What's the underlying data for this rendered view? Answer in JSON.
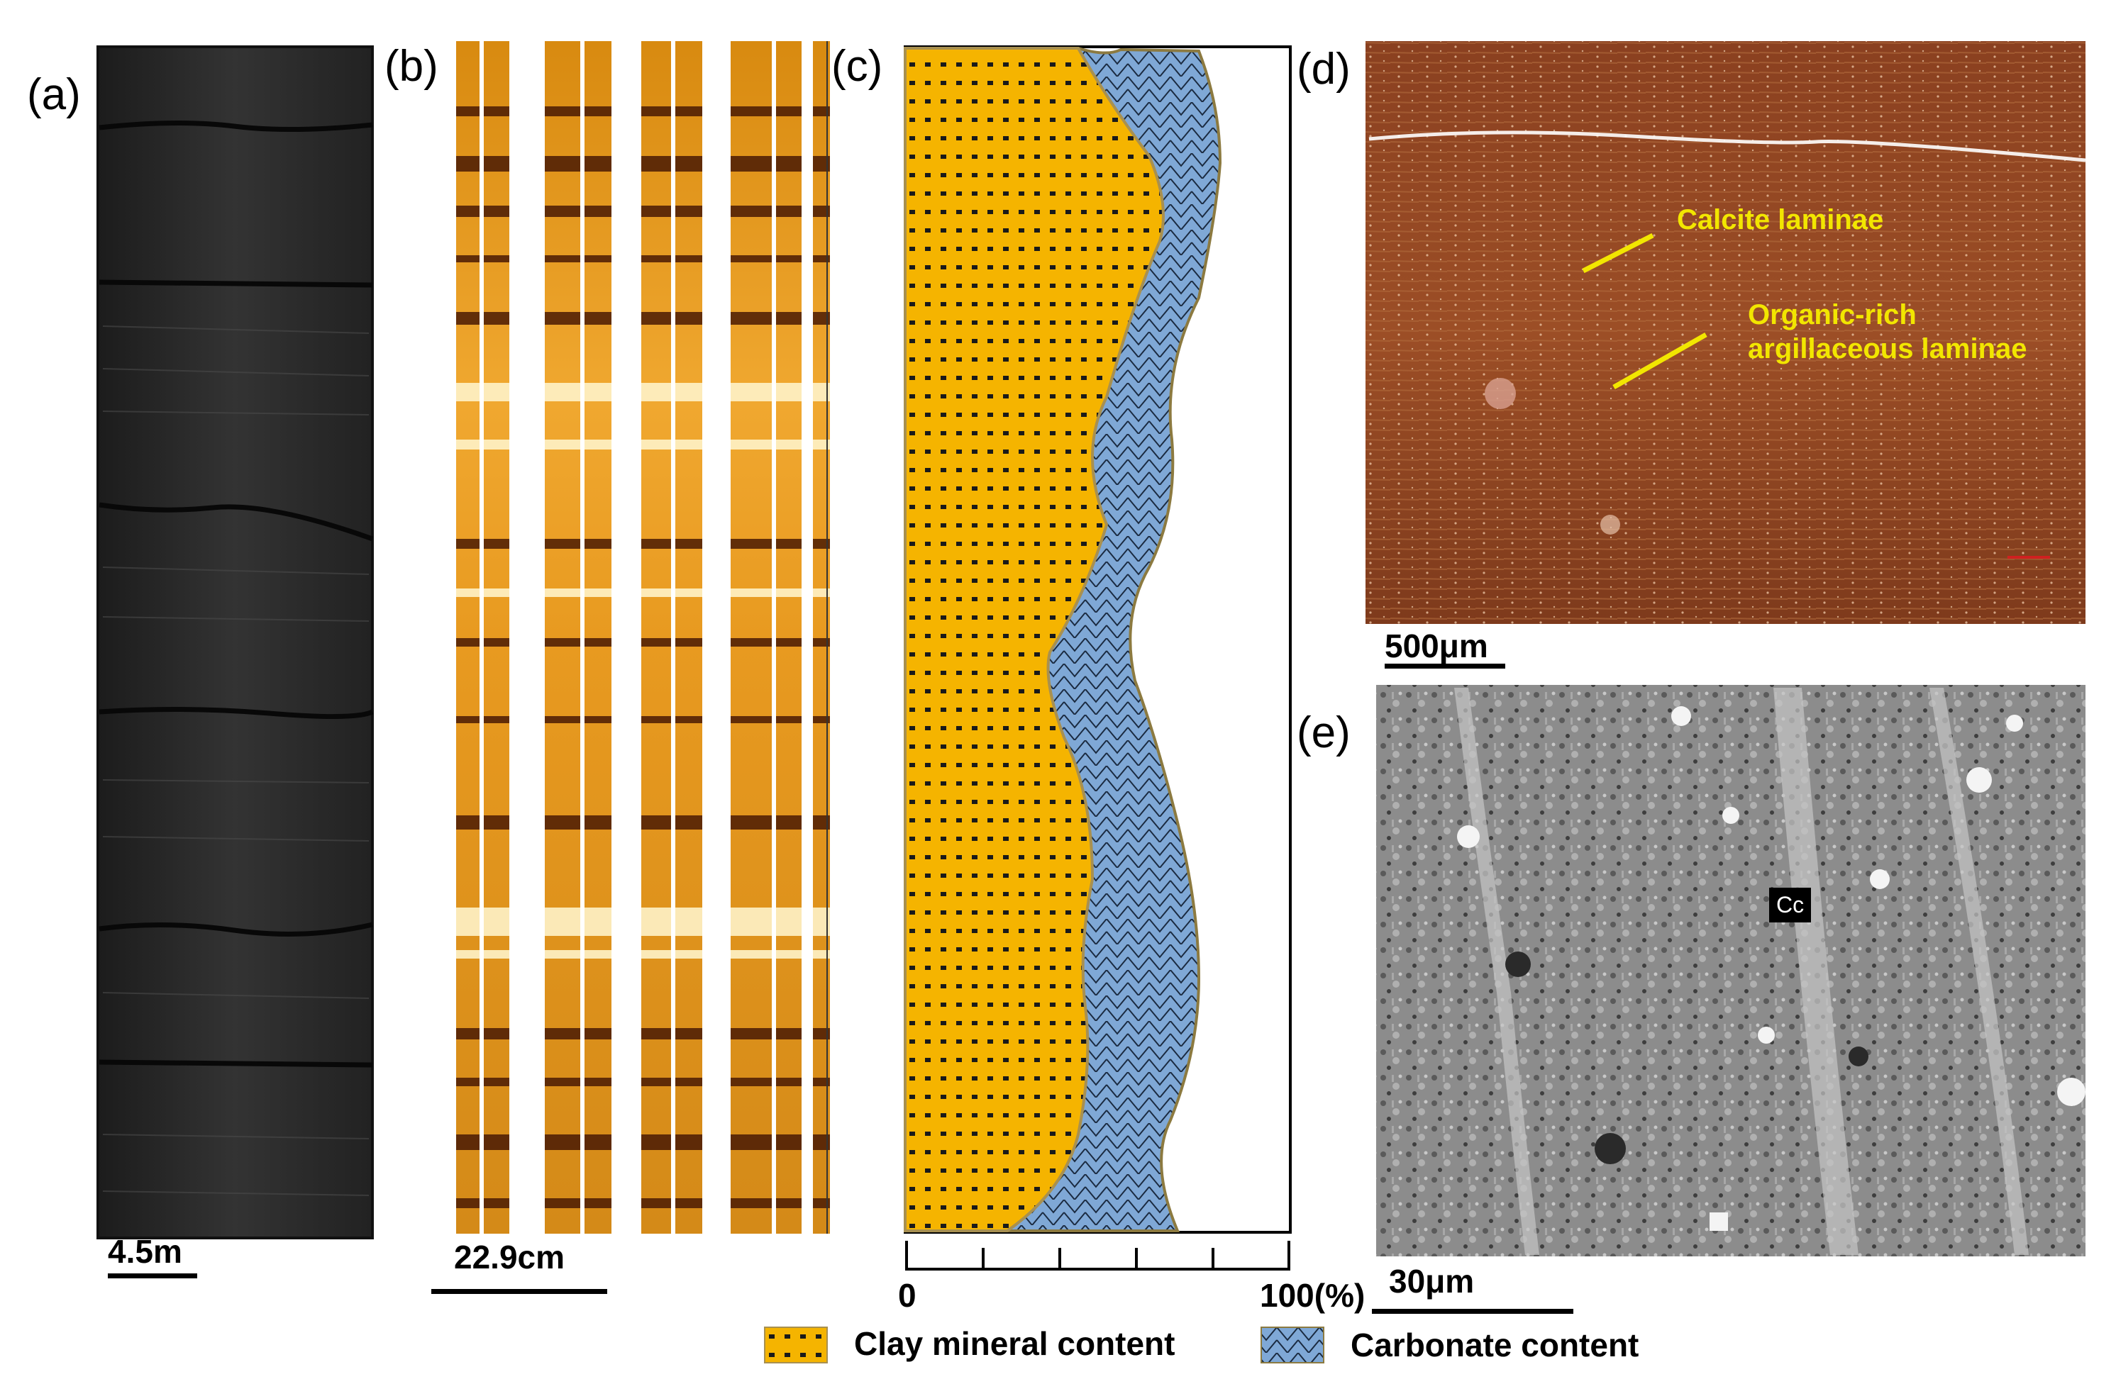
{
  "panels": {
    "a": {
      "label": "(a)",
      "scale": "4.5m"
    },
    "b": {
      "label": "(b)",
      "scale": "22.9cm"
    },
    "c": {
      "label": "(c)",
      "axis_min": "0",
      "axis_max": "100(%)"
    },
    "d": {
      "label": "(d)",
      "scale": "500μm",
      "annotation_1": "Calcite laminae",
      "annotation_2_line1": "Organic-rich",
      "annotation_2_line2": "argillaceous laminae"
    },
    "e": {
      "label": "(e)",
      "scale": "30μm",
      "mineral_tag": "Cc"
    }
  },
  "legend": {
    "clay": "Clay mineral content",
    "carbonate": "Carbonate content"
  },
  "colors": {
    "clay": "#f5b400",
    "carbonate": "#7fa8d6",
    "annotation": "#f2e600",
    "core": "#2a2a2a"
  }
}
